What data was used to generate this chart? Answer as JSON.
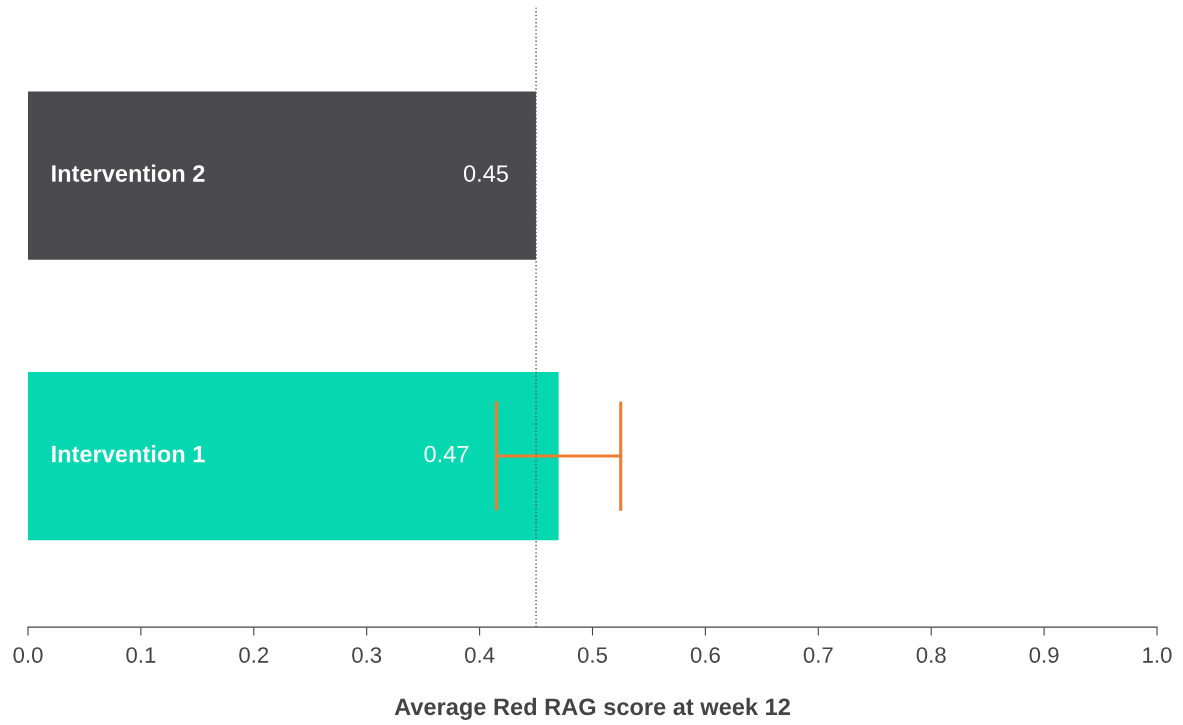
{
  "chart_data": {
    "type": "bar",
    "orientation": "horizontal",
    "categories": [
      "Intervention 2",
      "Intervention 1"
    ],
    "values": [
      0.45,
      0.47
    ],
    "colors": [
      "#4b4a4f",
      "#05d8b0"
    ],
    "errors": [
      null,
      [
        0.415,
        0.525
      ]
    ],
    "data_labels": true,
    "xlabel": "Average Red RAG score at week 12",
    "xlim": [
      0.0,
      1.0
    ],
    "xticks": [
      {
        "value": 0.0,
        "label": "0.0"
      },
      0.1,
      0.2,
      0.3,
      0.4,
      0.5,
      0.6,
      0.7,
      0.8,
      0.9,
      {
        "value": 1.0,
        "label": "1.0"
      }
    ],
    "ref_lines": [
      {
        "axis": "x",
        "value": 0.45,
        "color": "#555555",
        "line_style": "dotted"
      }
    ],
    "grid": false,
    "legend": false
  }
}
